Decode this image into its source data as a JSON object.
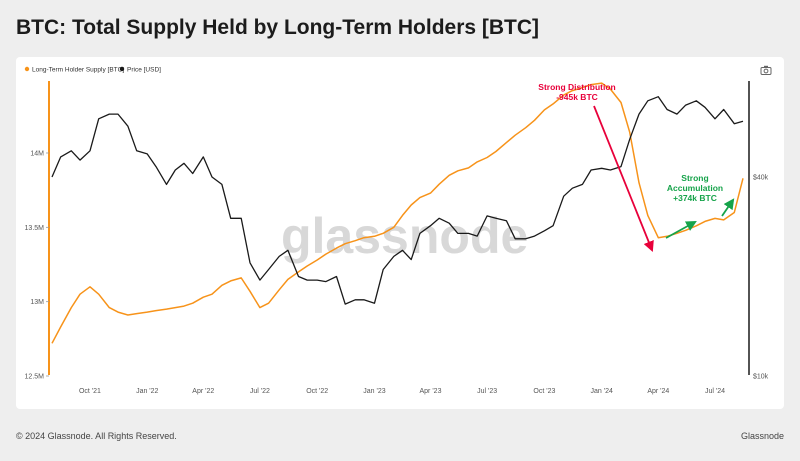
{
  "title": "BTC: Total Supply Held by Long-Term Holders [BTC]",
  "footer": {
    "copyright": "© 2024 Glassnode. All Rights Reserved.",
    "brand": "Glassnode"
  },
  "watermark": "glassnode",
  "icons": {
    "camera": "camera-icon"
  },
  "colors": {
    "lth_supply": "#f7931a",
    "price": "#1a1a1a",
    "distribution": "#e8003a",
    "accumulation": "#16a34a"
  },
  "chart_data": {
    "type": "line",
    "legend": [
      "Long-Term Holder Supply [BTC]",
      "Price [USD]"
    ],
    "legend_position": "top-left",
    "x_tick_labels": [
      "Oct '21",
      "Jan '22",
      "Apr '22",
      "Jul '22",
      "Oct '22",
      "Jan '23",
      "Apr '23",
      "Jul '23",
      "Oct '23",
      "Jan '24",
      "Apr '24",
      "Jul '24"
    ],
    "y_left_tick_labels": [
      "12.5M",
      "13M",
      "13.5M",
      "14M"
    ],
    "y_right_tick_labels": [
      "$10k",
      "$40k"
    ],
    "ylim_left": [
      12500000,
      14800000
    ],
    "y_right_scale": "log",
    "grid": false,
    "series": [
      {
        "name": "Long-Term Holder Supply [BTC]",
        "axis": "left",
        "x": [
          "2021-08-01",
          "2021-08-15",
          "2021-09-01",
          "2021-09-15",
          "2021-10-01",
          "2021-10-15",
          "2021-11-01",
          "2021-11-15",
          "2021-12-01",
          "2021-12-15",
          "2022-01-01",
          "2022-01-15",
          "2022-02-01",
          "2022-02-15",
          "2022-03-01",
          "2022-03-15",
          "2022-04-01",
          "2022-04-15",
          "2022-05-01",
          "2022-05-15",
          "2022-06-01",
          "2022-06-15",
          "2022-07-01",
          "2022-07-15",
          "2022-08-01",
          "2022-08-15",
          "2022-09-01",
          "2022-09-15",
          "2022-10-01",
          "2022-10-15",
          "2022-11-01",
          "2022-11-15",
          "2022-12-01",
          "2022-12-15",
          "2023-01-01",
          "2023-01-15",
          "2023-02-01",
          "2023-02-15",
          "2023-03-01",
          "2023-03-15",
          "2023-04-01",
          "2023-04-15",
          "2023-05-01",
          "2023-05-15",
          "2023-06-01",
          "2023-06-15",
          "2023-07-01",
          "2023-07-15",
          "2023-08-01",
          "2023-08-15",
          "2023-09-01",
          "2023-09-15",
          "2023-10-01",
          "2023-10-15",
          "2023-11-01",
          "2023-11-15",
          "2023-12-01",
          "2023-12-15",
          "2024-01-01",
          "2024-01-15",
          "2024-02-01",
          "2024-02-15",
          "2024-03-01",
          "2024-03-15",
          "2024-04-01",
          "2024-04-15",
          "2024-05-01",
          "2024-05-15",
          "2024-06-01",
          "2024-06-15",
          "2024-07-01",
          "2024-07-15",
          "2024-08-01",
          "2024-08-15"
        ],
        "values": [
          12720000,
          12830000,
          12960000,
          13050000,
          13100000,
          13050000,
          12960000,
          12930000,
          12910000,
          12920000,
          12930000,
          12940000,
          12950000,
          12960000,
          12970000,
          12990000,
          13030000,
          13050000,
          13110000,
          13140000,
          13160000,
          13070000,
          12960000,
          12990000,
          13080000,
          13150000,
          13200000,
          13240000,
          13280000,
          13320000,
          13360000,
          13390000,
          13410000,
          13430000,
          13440000,
          13460000,
          13500000,
          13580000,
          13650000,
          13700000,
          13730000,
          13790000,
          13850000,
          13880000,
          13900000,
          13940000,
          13970000,
          14010000,
          14070000,
          14120000,
          14170000,
          14220000,
          14290000,
          14330000,
          14390000,
          14420000,
          14440000,
          14460000,
          14470000,
          14430000,
          14340000,
          14140000,
          13800000,
          13580000,
          13430000,
          13440000,
          13460000,
          13480000,
          13510000,
          13540000,
          13560000,
          13550000,
          13600000,
          13830000
        ]
      },
      {
        "name": "Price [USD]",
        "axis": "right",
        "x": [
          "2021-08-01",
          "2021-08-15",
          "2021-09-01",
          "2021-09-15",
          "2021-10-01",
          "2021-10-15",
          "2021-11-01",
          "2021-11-15",
          "2021-12-01",
          "2021-12-15",
          "2022-01-01",
          "2022-01-15",
          "2022-02-01",
          "2022-02-15",
          "2022-03-01",
          "2022-03-15",
          "2022-04-01",
          "2022-04-15",
          "2022-05-01",
          "2022-05-15",
          "2022-06-01",
          "2022-06-15",
          "2022-07-01",
          "2022-07-15",
          "2022-08-01",
          "2022-08-15",
          "2022-09-01",
          "2022-09-15",
          "2022-10-01",
          "2022-10-15",
          "2022-11-01",
          "2022-11-15",
          "2022-12-01",
          "2022-12-15",
          "2023-01-01",
          "2023-01-15",
          "2023-02-01",
          "2023-02-15",
          "2023-03-01",
          "2023-03-15",
          "2023-04-01",
          "2023-04-15",
          "2023-05-01",
          "2023-05-15",
          "2023-06-01",
          "2023-06-15",
          "2023-07-01",
          "2023-07-15",
          "2023-08-01",
          "2023-08-15",
          "2023-09-01",
          "2023-09-15",
          "2023-10-01",
          "2023-10-15",
          "2023-11-01",
          "2023-11-15",
          "2023-12-01",
          "2023-12-15",
          "2024-01-01",
          "2024-01-15",
          "2024-02-01",
          "2024-02-15",
          "2024-03-01",
          "2024-03-15",
          "2024-04-01",
          "2024-04-15",
          "2024-05-01",
          "2024-05-15",
          "2024-06-01",
          "2024-06-15",
          "2024-07-01",
          "2024-07-15",
          "2024-08-01",
          "2024-08-15"
        ],
        "values": [
          40000,
          46000,
          48000,
          45000,
          48000,
          60000,
          62000,
          62000,
          57000,
          48000,
          47000,
          43000,
          38000,
          42000,
          44000,
          41000,
          46000,
          40000,
          38000,
          30000,
          30000,
          22000,
          19500,
          21000,
          23000,
          24000,
          20000,
          19500,
          19500,
          19300,
          20000,
          16500,
          17000,
          17000,
          16600,
          21000,
          23000,
          24000,
          22500,
          27000,
          28500,
          30000,
          29000,
          27000,
          27000,
          26500,
          30500,
          30000,
          29500,
          26000,
          26000,
          26500,
          27500,
          28500,
          35000,
          37000,
          38000,
          42000,
          42500,
          42000,
          43000,
          52000,
          62000,
          68000,
          70000,
          64000,
          62000,
          66000,
          68000,
          65000,
          60000,
          64000,
          58000,
          59000
        ]
      }
    ],
    "annotations": [
      {
        "text": [
          "Strong Distribution",
          "-945k BTC"
        ]
      },
      {
        "text": [
          "Strong",
          "Accumulation",
          "+374k BTC"
        ]
      }
    ]
  }
}
